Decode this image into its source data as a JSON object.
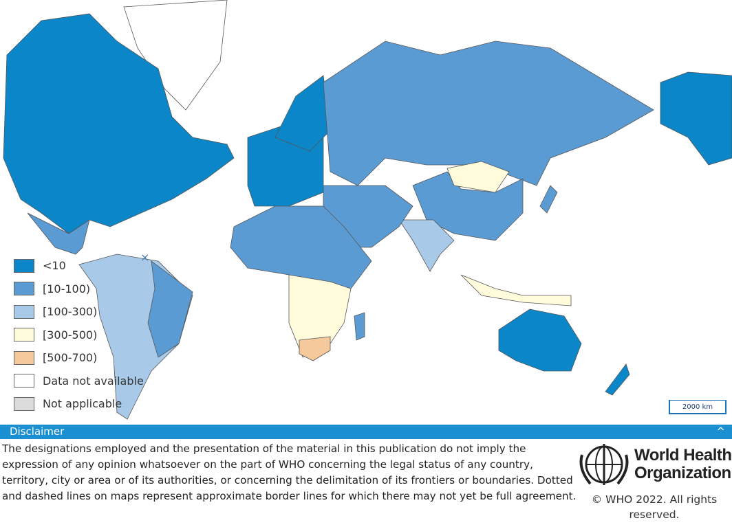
{
  "legend": {
    "items": [
      {
        "label": "<10",
        "color": "#0b86c9"
      },
      {
        "label": "[10-100)",
        "color": "#5b9bd3"
      },
      {
        "label": "[100-300)",
        "color": "#a8c9e8"
      },
      {
        "label": "[300-500)",
        "color": "#fffbdb"
      },
      {
        "label": "[500-700)",
        "color": "#f6c99c"
      },
      {
        "label": "Data not available",
        "color": "#ffffff"
      },
      {
        "label": "Not applicable",
        "color": "#dcdcdc"
      }
    ]
  },
  "scale_bar": "2000 km",
  "disclaimer": {
    "title": "Disclaimer",
    "text": "The designations employed and the presentation of the material in this publication do not imply the expression of any opinion whatsoever on the part of WHO concerning the legal status of any country, territory, city or area or of its authorities, or concerning the delimitation of its frontiers or boundaries. Dotted and dashed lines on maps represent approximate border lines for which there may not yet be full agreement."
  },
  "logo": {
    "lines": [
      "World Health",
      "Organization"
    ]
  },
  "copyright": "© WHO 2022. All rights reserved."
}
